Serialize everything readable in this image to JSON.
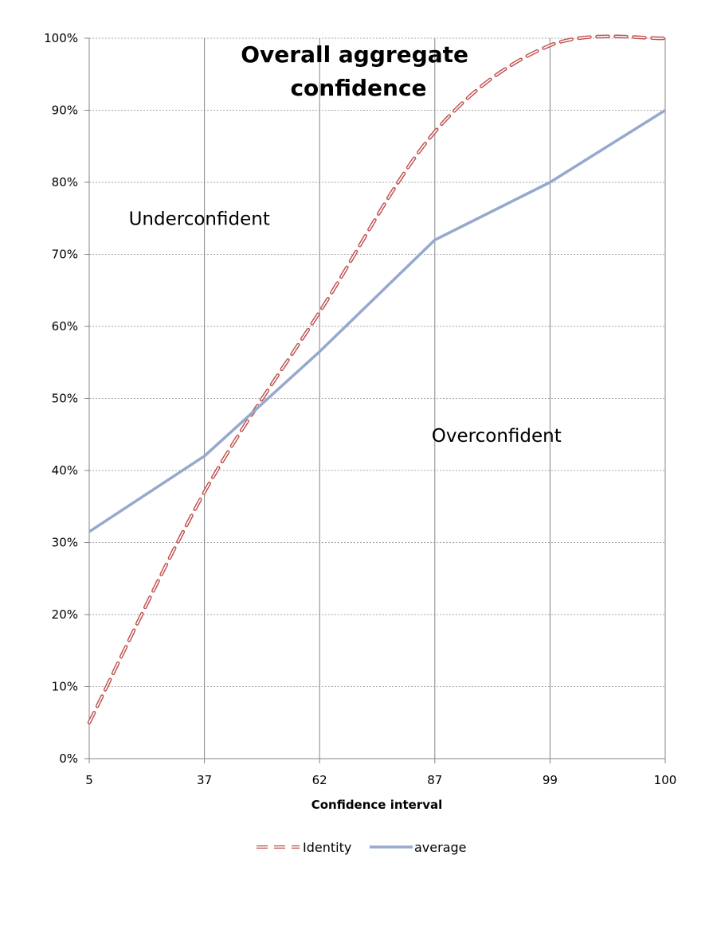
{
  "chart_data": {
    "type": "line",
    "title": "Overall aggregate confidence",
    "title_lines": [
      "Overall aggregate",
      "confidence"
    ],
    "xlabel": "Confidence interval",
    "ylabel": "",
    "categories": [
      "5",
      "37",
      "62",
      "87",
      "99",
      "100"
    ],
    "ylim": [
      0,
      100
    ],
    "yticks": [
      0,
      10,
      20,
      30,
      40,
      50,
      60,
      70,
      80,
      90,
      100
    ],
    "ytick_labels": [
      "0%",
      "10%",
      "20%",
      "30%",
      "40%",
      "50%",
      "60%",
      "70%",
      "80%",
      "90%",
      "100%"
    ],
    "grid": "horizontal dotted, vertical solid",
    "legend": "bottom",
    "series": [
      {
        "name": "Identity",
        "style": "dashed",
        "color": "#c0504d",
        "values": [
          5,
          37,
          62,
          87,
          99,
          100
        ]
      },
      {
        "name": "average",
        "style": "solid",
        "color": "#95a9cf",
        "values": [
          31.5,
          42,
          56.5,
          72,
          80,
          90
        ]
      }
    ],
    "annotations": [
      {
        "text": "Underconfident",
        "x_index": 1,
        "y": 75
      },
      {
        "text": "Overconfident",
        "x_index": 3,
        "y": 45
      }
    ]
  }
}
